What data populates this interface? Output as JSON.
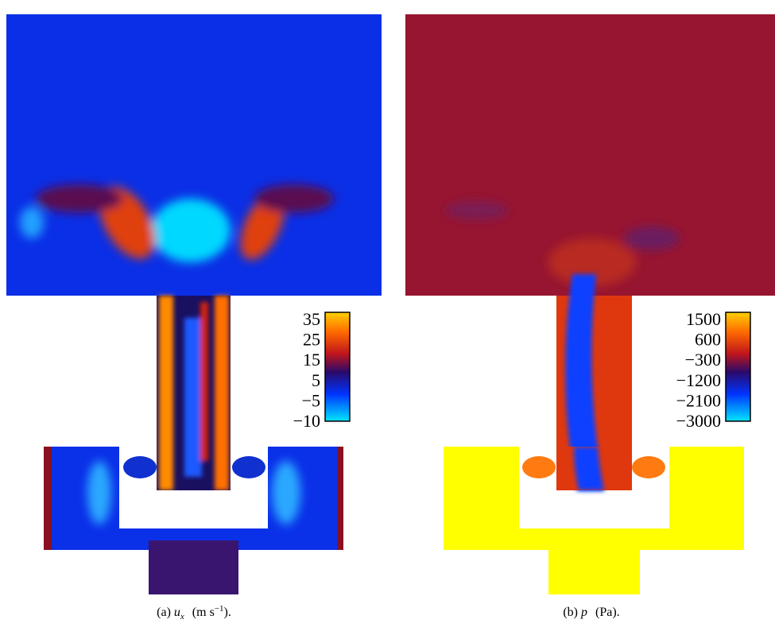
{
  "panels": [
    {
      "caption": {
        "label": "(a)",
        "symbol": "u",
        "subscript": "x",
        "unit": "(m s",
        "superscript": "−1",
        "end": ")."
      },
      "colorbar": {
        "ticks": [
          "35",
          "25",
          "15",
          "5",
          "−5",
          "−10"
        ]
      }
    },
    {
      "caption": {
        "label": "(b)",
        "symbol": "p",
        "unit": "(Pa",
        "end": ")."
      },
      "colorbar": {
        "ticks": [
          "1500",
          "600",
          "−300",
          "−1200",
          "−2100",
          "−3000"
        ]
      }
    }
  ]
}
